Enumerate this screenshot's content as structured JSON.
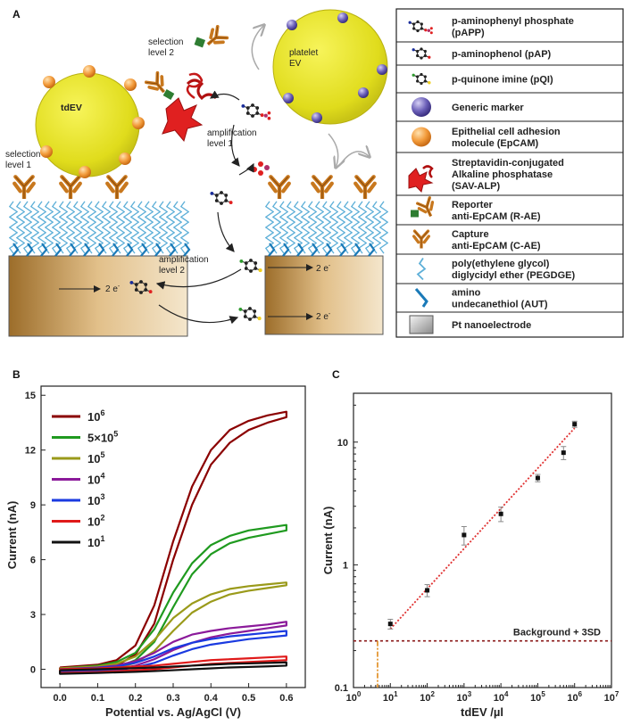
{
  "panel_a": {
    "letter": "A",
    "labels": {
      "selection_level_2_a": "selection",
      "selection_level_2_b": "level 2",
      "selection_level_1_a": "selection",
      "selection_level_1_b": "level 1",
      "platelet_a": "platelet",
      "platelet_b": "EV",
      "tdev": "tdEV",
      "amp1_a": "amplification",
      "amp1_b": "level 1",
      "amp2_a": "amplification",
      "amp2_b": "level 2",
      "electron": "2 e"
    },
    "legend": [
      {
        "icon": "papp-molecule-icon",
        "lines": [
          "p-aminophenyl phosphate",
          "(pAPP)"
        ]
      },
      {
        "icon": "pap-molecule-icon",
        "lines": [
          "p-aminophenol (pAP)"
        ]
      },
      {
        "icon": "pqi-molecule-icon",
        "lines": [
          "p-quinone imine (pQI)"
        ]
      },
      {
        "icon": "generic-marker-icon",
        "lines": [
          "Generic marker"
        ]
      },
      {
        "icon": "epcam-icon",
        "lines": [
          "Epithelial cell adhesion",
          "molecule (EpCAM)"
        ]
      },
      {
        "icon": "sav-alp-icon",
        "lines": [
          "Streptavidin-conjugated",
          "Alkaline phosphatase",
          "(SAV-ALP)"
        ]
      },
      {
        "icon": "reporter-antibody-icon",
        "lines": [
          "Reporter",
          "anti-EpCAM (R-AE)"
        ]
      },
      {
        "icon": "capture-antibody-icon",
        "lines": [
          "Capture",
          "anti-EpCAM (C-AE)"
        ]
      },
      {
        "icon": "pegdge-icon",
        "lines": [
          "poly(ethylene glycol)",
          "diglycidyl ether (PEGDGE)"
        ]
      },
      {
        "icon": "aut-icon",
        "lines": [
          "amino",
          "undecanethiol (AUT)"
        ]
      },
      {
        "icon": "pt-nanoelectrode-icon",
        "lines": [
          "Pt nanoelectrode"
        ]
      }
    ]
  },
  "chart_data": [
    {
      "panel": "B",
      "type": "line",
      "xlabel": "Potential vs. Ag/AgCl (V)",
      "ylabel": "Current (nA)",
      "xlim": [
        -0.05,
        0.65
      ],
      "ylim": [
        -1,
        15.5
      ],
      "xticks": [
        "0.0",
        "0.1",
        "0.2",
        "0.3",
        "0.4",
        "0.5",
        "0.6"
      ],
      "yticks": [
        "0",
        "3",
        "6",
        "9",
        "12",
        "15"
      ],
      "legend_position": "top-left",
      "series": [
        {
          "name": "10^6",
          "color": "#8b0000",
          "x": [
            0.0,
            0.1,
            0.15,
            0.2,
            0.25,
            0.3,
            0.35,
            0.4,
            0.45,
            0.5,
            0.55,
            0.6
          ],
          "upper": [
            0.1,
            0.25,
            0.5,
            1.3,
            3.5,
            7.0,
            10.0,
            12.0,
            13.1,
            13.6,
            13.9,
            14.1
          ],
          "lower": [
            -0.1,
            0.0,
            0.2,
            0.8,
            2.5,
            6.0,
            9.0,
            11.2,
            12.4,
            13.1,
            13.5,
            13.8
          ]
        },
        {
          "name": "5x10^5",
          "color": "#1f9a1f",
          "x": [
            0.0,
            0.1,
            0.15,
            0.2,
            0.25,
            0.3,
            0.35,
            0.4,
            0.45,
            0.5,
            0.55,
            0.6
          ],
          "upper": [
            0.05,
            0.2,
            0.4,
            0.9,
            2.2,
            4.2,
            5.8,
            6.8,
            7.3,
            7.6,
            7.75,
            7.9
          ],
          "lower": [
            -0.15,
            -0.05,
            0.1,
            0.5,
            1.5,
            3.4,
            5.2,
            6.3,
            6.9,
            7.2,
            7.4,
            7.6
          ]
        },
        {
          "name": "10^5",
          "color": "#9a9a1a",
          "x": [
            0.0,
            0.1,
            0.15,
            0.2,
            0.25,
            0.3,
            0.35,
            0.4,
            0.45,
            0.5,
            0.55,
            0.6
          ],
          "upper": [
            0.05,
            0.15,
            0.3,
            0.7,
            1.6,
            2.8,
            3.6,
            4.1,
            4.4,
            4.55,
            4.65,
            4.75
          ],
          "lower": [
            -0.15,
            -0.05,
            0.05,
            0.35,
            1.0,
            2.1,
            3.1,
            3.7,
            4.1,
            4.3,
            4.45,
            4.6
          ]
        },
        {
          "name": "10^4",
          "color": "#8b1a9a",
          "x": [
            0.0,
            0.1,
            0.15,
            0.2,
            0.25,
            0.3,
            0.35,
            0.4,
            0.45,
            0.5,
            0.55,
            0.6
          ],
          "upper": [
            0.0,
            0.1,
            0.2,
            0.45,
            0.9,
            1.5,
            1.9,
            2.1,
            2.25,
            2.35,
            2.45,
            2.6
          ],
          "lower": [
            -0.15,
            -0.1,
            0.0,
            0.2,
            0.55,
            1.05,
            1.45,
            1.75,
            1.95,
            2.1,
            2.25,
            2.4
          ]
        },
        {
          "name": "10^3",
          "color": "#1a3ae0",
          "x": [
            0.0,
            0.1,
            0.15,
            0.2,
            0.25,
            0.3,
            0.35,
            0.4,
            0.45,
            0.5,
            0.55,
            0.6
          ],
          "upper": [
            0.0,
            0.08,
            0.15,
            0.35,
            0.7,
            1.15,
            1.45,
            1.65,
            1.8,
            1.9,
            2.0,
            2.1
          ],
          "lower": [
            -0.15,
            -0.1,
            -0.05,
            0.1,
            0.35,
            0.75,
            1.1,
            1.35,
            1.5,
            1.65,
            1.75,
            1.85
          ]
        },
        {
          "name": "10^2",
          "color": "#e01a1a",
          "x": [
            0.0,
            0.1,
            0.15,
            0.2,
            0.25,
            0.3,
            0.35,
            0.4,
            0.45,
            0.5,
            0.55,
            0.6
          ],
          "upper": [
            0.0,
            0.05,
            0.1,
            0.15,
            0.2,
            0.3,
            0.4,
            0.5,
            0.55,
            0.6,
            0.65,
            0.7
          ],
          "lower": [
            -0.2,
            -0.15,
            -0.1,
            -0.05,
            0.0,
            0.1,
            0.2,
            0.3,
            0.35,
            0.4,
            0.45,
            0.5
          ]
        },
        {
          "name": "10^1",
          "color": "#111111",
          "x": [
            0.0,
            0.1,
            0.15,
            0.2,
            0.25,
            0.3,
            0.35,
            0.4,
            0.45,
            0.5,
            0.55,
            0.6
          ],
          "upper": [
            -0.05,
            0.0,
            0.03,
            0.06,
            0.1,
            0.15,
            0.2,
            0.25,
            0.3,
            0.32,
            0.35,
            0.38
          ],
          "lower": [
            -0.25,
            -0.2,
            -0.17,
            -0.14,
            -0.1,
            -0.05,
            0.0,
            0.05,
            0.1,
            0.13,
            0.16,
            0.2
          ]
        }
      ]
    },
    {
      "panel": "C",
      "type": "scatter",
      "xlabel": "tdEV /µl",
      "ylabel": "Current (nA)",
      "x_scale": "log",
      "y_scale": "log",
      "xlim": [
        1,
        10000000
      ],
      "ylim": [
        0.1,
        25
      ],
      "xticks": [
        {
          "v": 1,
          "m": "0"
        },
        {
          "v": 10,
          "m": "1"
        },
        {
          "v": 100,
          "m": "2"
        },
        {
          "v": 1000,
          "m": "3"
        },
        {
          "v": 10000,
          "m": "4"
        },
        {
          "v": 100000,
          "m": "5"
        },
        {
          "v": 1000000,
          "m": "6"
        },
        {
          "v": 10000000,
          "m": "7"
        }
      ],
      "yticks": [
        "0.1",
        "1",
        "10"
      ],
      "points": [
        {
          "x": 10,
          "y": 0.33,
          "err": 0.03
        },
        {
          "x": 100,
          "y": 0.62,
          "err": 0.07
        },
        {
          "x": 1000,
          "y": 1.75,
          "err": 0.3
        },
        {
          "x": 10000,
          "y": 2.6,
          "err": 0.35
        },
        {
          "x": 100000,
          "y": 5.1,
          "err": 0.35
        },
        {
          "x": 500000,
          "y": 8.2,
          "err": 1.0
        },
        {
          "x": 1000000,
          "y": 14.0,
          "err": 0.8
        }
      ],
      "fit": {
        "x": [
          10,
          1000000
        ],
        "y": [
          0.3,
          13.0
        ],
        "color": "#e03030"
      },
      "background": {
        "y": 0.24,
        "label": "Background + 3SD",
        "color": "#8b1a1a"
      },
      "lod_x": 4.5,
      "lod_color": "#e08a1a"
    }
  ]
}
